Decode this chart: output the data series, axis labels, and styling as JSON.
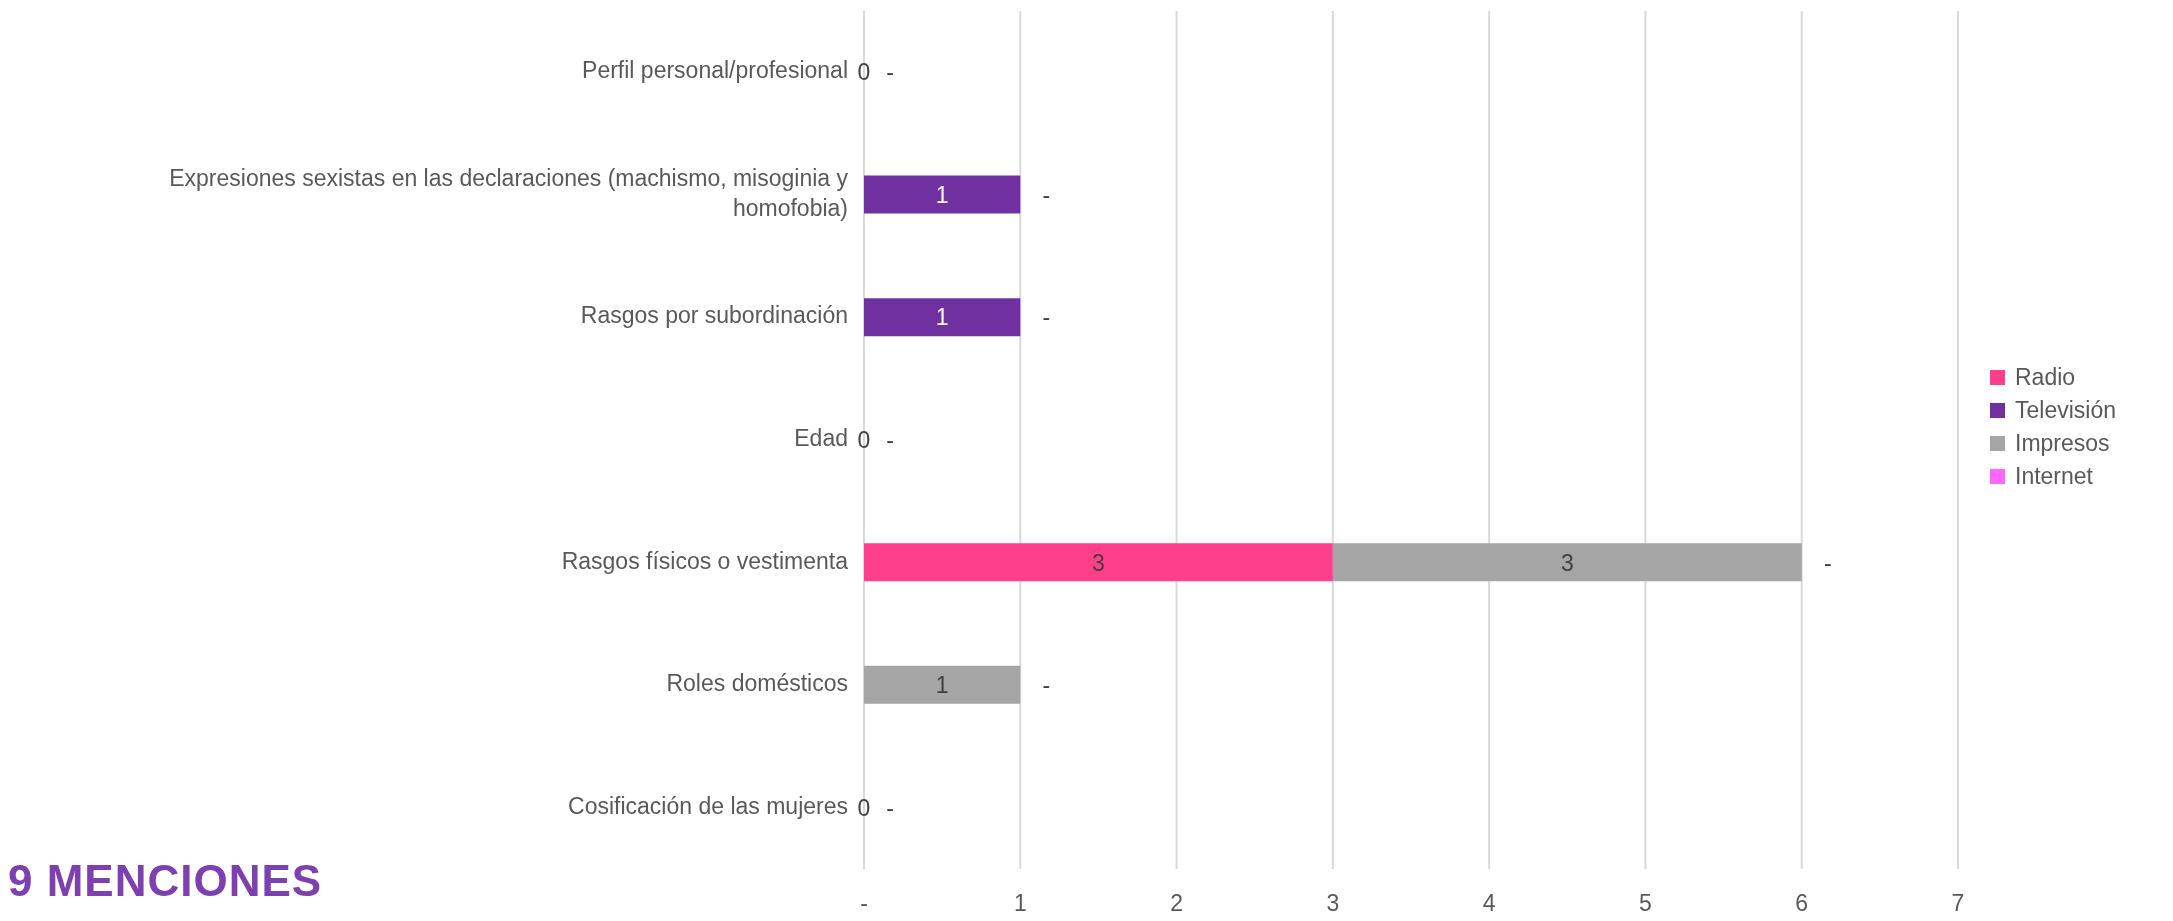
{
  "chart_data": {
    "type": "bar",
    "orientation": "horizontal",
    "stacked": true,
    "categories": [
      "Perfil personal/profesional",
      "Expresiones sexistas en las declaraciones (machismo, misoginia y homofobia)",
      "Rasgos por subordinación",
      "Edad",
      "Rasgos físicos o vestimenta",
      "Roles domésticos",
      "Cosificación de las mujeres"
    ],
    "series": [
      {
        "name": "Radio",
        "color": "#ff3f8a",
        "values": [
          0,
          0,
          0,
          0,
          3,
          0,
          0
        ],
        "value_labels": [
          "0",
          null,
          null,
          "0",
          "3",
          null,
          "0"
        ]
      },
      {
        "name": "Televisión",
        "color": "#7030a0",
        "values": [
          0,
          1,
          1,
          0,
          0,
          0,
          0
        ],
        "value_labels": [
          null,
          "1",
          "1",
          null,
          null,
          null,
          null
        ]
      },
      {
        "name": "Impresos",
        "color": "#a5a5a5",
        "values": [
          0,
          0,
          0,
          0,
          3,
          1,
          0
        ],
        "value_labels": [
          null,
          null,
          null,
          null,
          "3",
          "1",
          null
        ]
      },
      {
        "name": "Internet",
        "color": "#ff66ff",
        "values": [
          0,
          0,
          0,
          0,
          0,
          0,
          0
        ],
        "value_labels": [
          "-",
          "-",
          "-",
          "-",
          "-",
          "-",
          "-"
        ]
      }
    ],
    "xlim": [
      0,
      7
    ],
    "xticks": [
      {
        "value": 0,
        "label": "-"
      },
      1,
      2,
      3,
      4,
      5,
      6,
      7
    ],
    "grid": "x",
    "legend": "right",
    "annotations": [
      "9 MENCIONES"
    ]
  }
}
